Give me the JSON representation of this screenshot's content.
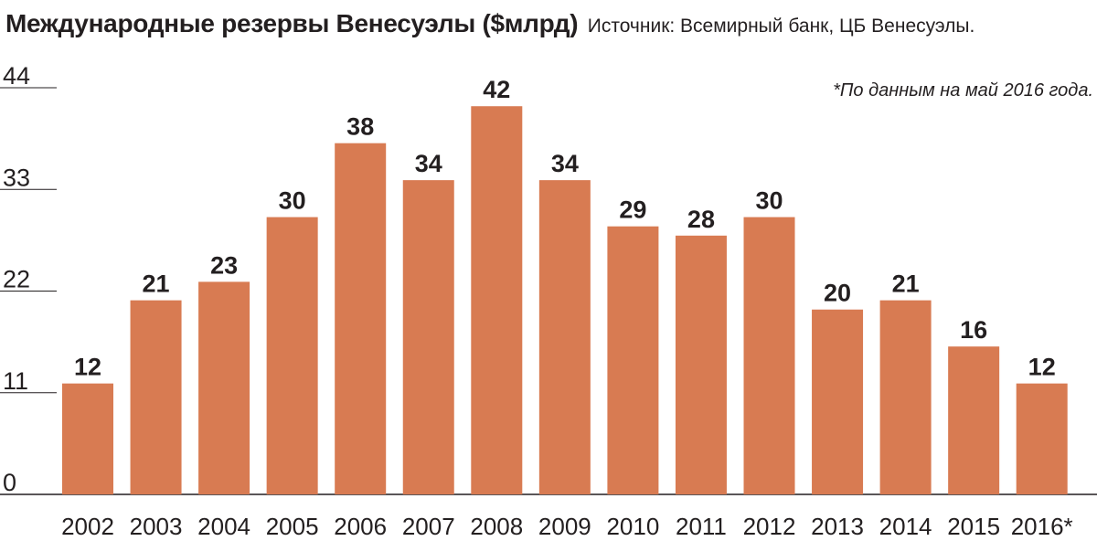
{
  "chart_data": {
    "type": "bar",
    "title": "Международные резервы Венесуэлы ($млрд)",
    "source": "Источник: Всемирный банк, ЦБ Венесуэлы.",
    "note": "*По данным на май 2016 года.",
    "categories": [
      "2002",
      "2003",
      "2004",
      "2005",
      "2006",
      "2007",
      "2008",
      "2009",
      "2010",
      "2011",
      "2012",
      "2013",
      "2014",
      "2015",
      "2016*"
    ],
    "values": [
      12,
      21,
      23,
      30,
      38,
      34,
      42,
      34,
      29,
      28,
      30,
      20,
      21,
      16,
      12
    ],
    "yticks": [
      0,
      11,
      22,
      33,
      44
    ],
    "ylim": [
      0,
      44
    ],
    "xlabel": "",
    "ylabel": "",
    "bar_color": "#d87b52",
    "grid": false
  }
}
